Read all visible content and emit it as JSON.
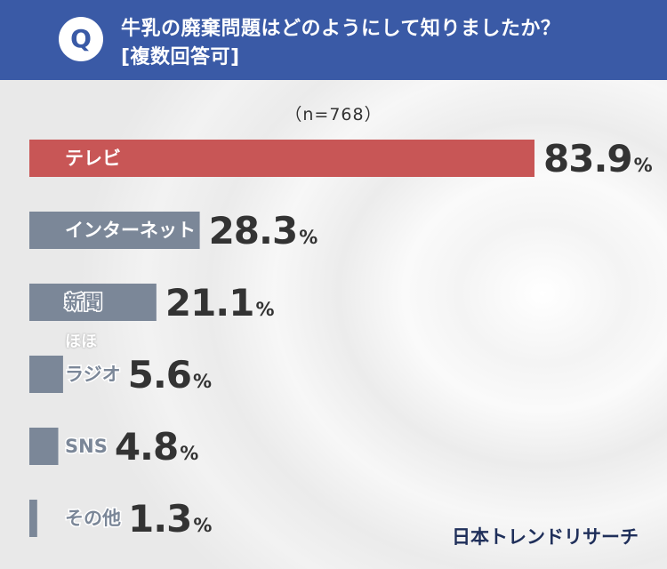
{
  "header": {
    "badge": "Q",
    "question_line1": "牛乳の廃棄問題はどのようにして知りましたか？",
    "question_line2": "[複数回答可]"
  },
  "sample": "（n=768）",
  "note": "ほほ",
  "brand": "日本トレンドリサーチ",
  "colors": {
    "header": "#3a5aa6",
    "highlight_bar": "#c85656",
    "bar": "#7b8798"
  },
  "chart_data": {
    "type": "bar",
    "orientation": "horizontal",
    "unit": "%",
    "categories": [
      "テレビ",
      "インターネット",
      "新聞",
      "ラジオ",
      "SNS",
      "その他"
    ],
    "values": [
      83.9,
      28.3,
      21.1,
      5.6,
      4.8,
      1.3
    ],
    "value_labels": [
      "83.9",
      "28.3",
      "21.1",
      "5.6",
      "4.8",
      "1.3"
    ],
    "highlight_index": 0
  }
}
